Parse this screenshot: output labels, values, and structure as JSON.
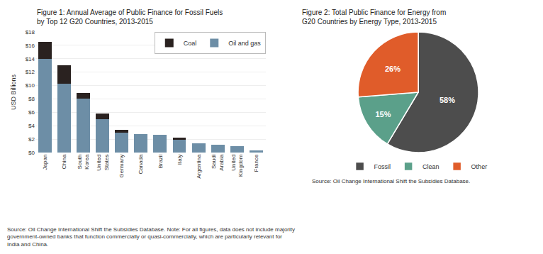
{
  "chart_data": [
    {
      "type": "bar",
      "title": "Figure 1: Annual Average of Public Finance for Fossil Fuels\nby Top 12 G20 Countries, 2013-2015",
      "stacked": true,
      "categories": [
        "Japan",
        "China",
        "South\nKorea",
        "United\nStates",
        "Germany",
        "Canada",
        "Brazil",
        "Italy",
        "Argentina",
        "Saudi\nArabia",
        "United\nKingdom",
        "France"
      ],
      "series": [
        {
          "name": "Oil and gas",
          "color": "#6d8ea6",
          "values": [
            14.0,
            10.3,
            8.0,
            5.0,
            3.0,
            2.8,
            2.6,
            2.0,
            1.4,
            1.2,
            1.0,
            0.3
          ]
        },
        {
          "name": "Coal",
          "color": "#2a2220",
          "values": [
            2.5,
            2.7,
            0.9,
            0.8,
            0.4,
            0.0,
            0.0,
            0.2,
            0.0,
            0.0,
            0.0,
            0.0
          ]
        }
      ],
      "ylabel": "USD Billions",
      "ylim": [
        0,
        18
      ],
      "yticks": [
        {
          "value": 0,
          "label": "$0"
        },
        {
          "value": 2,
          "label": "$2"
        },
        {
          "value": 4,
          "label": "$4"
        },
        {
          "value": 6,
          "label": "$6"
        },
        {
          "value": 8,
          "label": "$8"
        },
        {
          "value": 10,
          "label": "$10"
        },
        {
          "value": 12,
          "label": "$12"
        },
        {
          "value": 14,
          "label": "$14"
        },
        {
          "value": 16,
          "label": "$16"
        },
        {
          "value": 18,
          "label": "$18"
        }
      ],
      "grid": true,
      "legend": "upper right",
      "annotations": [
        "Source: Oil Change International Shift the Subsidies Database. Note: For all figures, data does not include majority\ngovernment-owned banks that function commercially or quasi-commercially, which are particularly relevant for\nIndia and China."
      ]
    },
    {
      "type": "pie",
      "title": "Figure 2: Total Public Finance for Energy from\nG20 Countries by Energy Type, 2013-2015",
      "categories": [
        "Fossil",
        "Clean",
        "Other"
      ],
      "values": [
        58,
        15,
        26
      ],
      "value_labels": [
        "58%",
        "15%",
        "26%"
      ],
      "colors": [
        "#4d4d4d",
        "#5ba08a",
        "#e05c2a"
      ],
      "data_labels": true,
      "legend": "bottom",
      "annotations": [
        "Source: Oil Change International Shift the Subsidies Database."
      ]
    }
  ]
}
